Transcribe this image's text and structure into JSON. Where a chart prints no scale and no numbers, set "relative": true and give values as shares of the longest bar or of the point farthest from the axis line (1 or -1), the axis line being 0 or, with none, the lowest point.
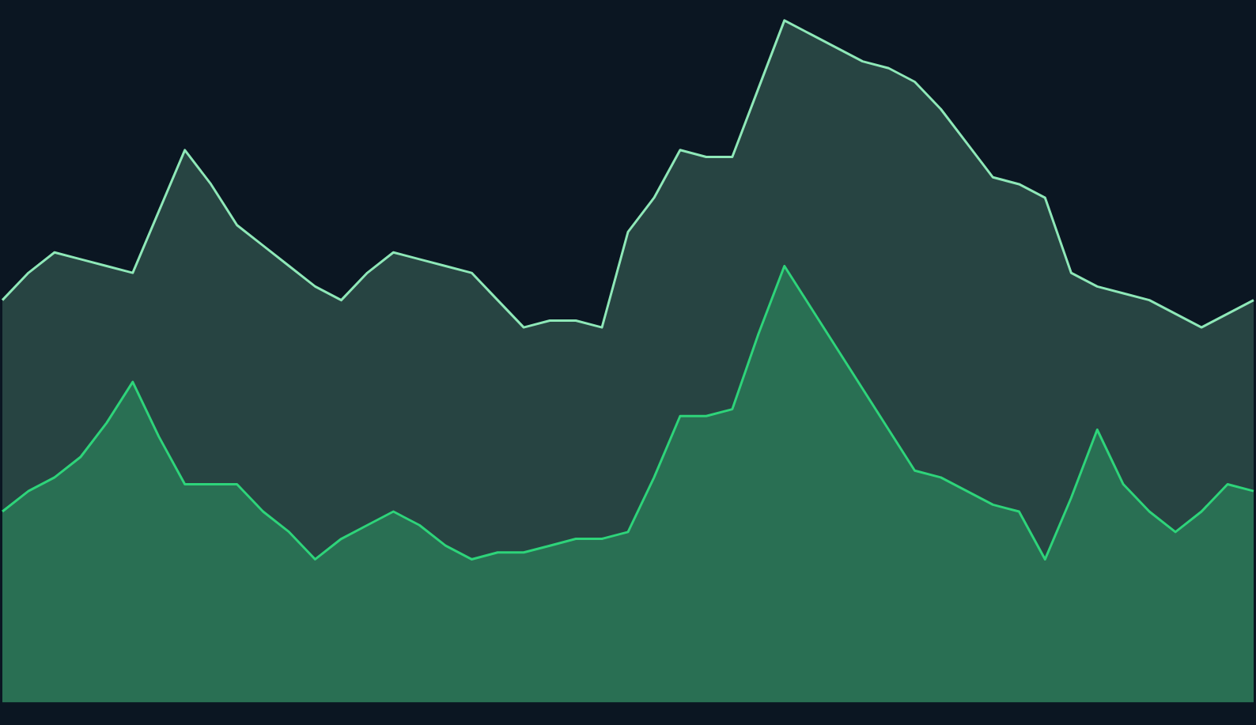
{
  "chart_data": {
    "type": "area",
    "relative": true,
    "categories": [
      null,
      null,
      null,
      null,
      null,
      null,
      null,
      null,
      null,
      null,
      null,
      null,
      null,
      null,
      null,
      null,
      null,
      null,
      null,
      null,
      null,
      null,
      null,
      null,
      null,
      null,
      null,
      null,
      null,
      null,
      null,
      null,
      null,
      null,
      null,
      null,
      null,
      null,
      null,
      null,
      null,
      null,
      null,
      null,
      null,
      null,
      null,
      null,
      null
    ],
    "series": [
      {
        "color": "#8ee8b8",
        "values": [
          0.59,
          0.63,
          0.66,
          0.65,
          0.64,
          0.63,
          0.72,
          0.81,
          0.76,
          0.7,
          0.67,
          0.64,
          0.61,
          0.59,
          0.63,
          0.66,
          0.65,
          0.64,
          0.63,
          0.59,
          0.55,
          0.56,
          0.56,
          0.55,
          0.69,
          0.74,
          0.81,
          0.8,
          0.8,
          0.9,
          1,
          0.98,
          0.96,
          0.94,
          0.93,
          0.91,
          0.87,
          0.82,
          0.77,
          0.76,
          0.74,
          0.63,
          0.61,
          0.6,
          0.59,
          0.57,
          0.55,
          0.57,
          0.59
        ]
      },
      {
        "color": "#2ed47a",
        "values": [
          0.28,
          0.31,
          0.33,
          0.36,
          0.41,
          0.47,
          0.39,
          0.32,
          0.32,
          0.32,
          0.28,
          0.25,
          0.21,
          0.24,
          0.26,
          0.28,
          0.26,
          0.23,
          0.21,
          0.22,
          0.22,
          0.23,
          0.24,
          0.24,
          0.25,
          0.33,
          0.42,
          0.42,
          0.43,
          0.54,
          0.64,
          0.58,
          0.52,
          0.46,
          0.4,
          0.34,
          0.33,
          0.31,
          0.29,
          0.28,
          0.21,
          0.3,
          0.4,
          0.32,
          0.28,
          0.25,
          0.28,
          0.32,
          0.31
        ]
      }
    ]
  }
}
